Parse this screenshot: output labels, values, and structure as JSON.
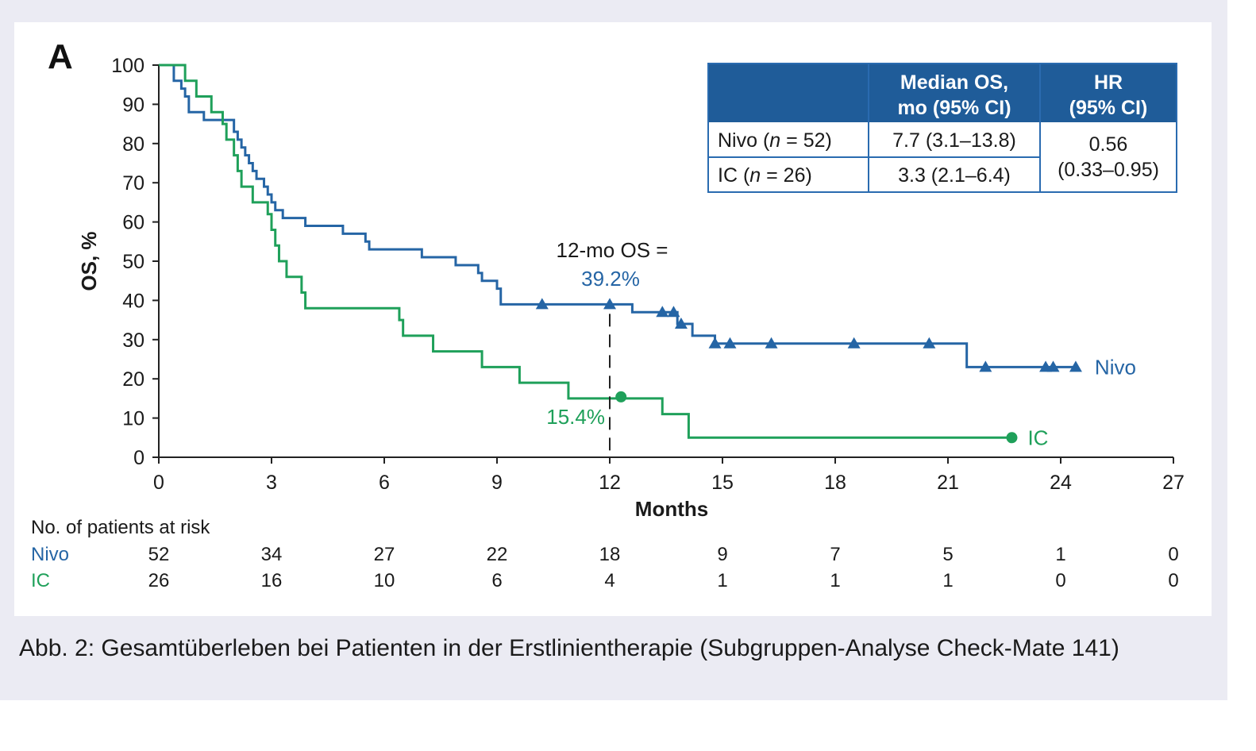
{
  "panel_label": "A",
  "chart_data": {
    "type": "line",
    "subtype": "kaplan-meier step",
    "xlabel": "Months",
    "ylabel": "OS, %",
    "xlim": [
      0,
      27
    ],
    "ylim": [
      0,
      100
    ],
    "xticks": [
      0,
      3,
      6,
      9,
      12,
      15,
      18,
      21,
      24,
      27
    ],
    "yticks": [
      0,
      10,
      20,
      30,
      40,
      50,
      60,
      70,
      80,
      90,
      100
    ],
    "grid": false,
    "series": [
      {
        "name": "Nivo",
        "color": "#2565a5",
        "censor_marker": "triangle",
        "steps": [
          [
            0,
            100
          ],
          [
            0.4,
            96
          ],
          [
            0.6,
            94
          ],
          [
            0.7,
            92
          ],
          [
            0.8,
            88
          ],
          [
            1.1,
            88
          ],
          [
            1.2,
            86
          ],
          [
            1.9,
            86
          ],
          [
            2.0,
            83
          ],
          [
            2.1,
            81
          ],
          [
            2.2,
            79
          ],
          [
            2.3,
            77
          ],
          [
            2.4,
            75
          ],
          [
            2.5,
            73
          ],
          [
            2.6,
            71
          ],
          [
            2.8,
            69
          ],
          [
            2.9,
            67
          ],
          [
            3.0,
            65
          ],
          [
            3.1,
            63
          ],
          [
            3.3,
            61
          ],
          [
            3.8,
            61
          ],
          [
            3.9,
            59
          ],
          [
            4.8,
            59
          ],
          [
            4.9,
            57
          ],
          [
            5.3,
            57
          ],
          [
            5.5,
            55
          ],
          [
            5.6,
            53
          ],
          [
            6.9,
            53
          ],
          [
            7.0,
            51
          ],
          [
            7.8,
            51
          ],
          [
            7.9,
            49
          ],
          [
            8.4,
            49
          ],
          [
            8.5,
            47
          ],
          [
            8.6,
            45
          ],
          [
            8.9,
            45
          ],
          [
            9.0,
            43
          ],
          [
            9.1,
            39
          ],
          [
            12.5,
            39
          ],
          [
            12.6,
            37
          ],
          [
            13.7,
            37
          ],
          [
            13.8,
            34
          ],
          [
            14.1,
            34
          ],
          [
            14.2,
            31
          ],
          [
            14.7,
            31
          ],
          [
            14.8,
            29
          ],
          [
            21.4,
            29
          ],
          [
            21.5,
            23
          ],
          [
            24.4,
            23
          ]
        ],
        "censors": [
          [
            10.2,
            39
          ],
          [
            12.0,
            39
          ],
          [
            13.4,
            37
          ],
          [
            13.7,
            37
          ],
          [
            13.9,
            34
          ],
          [
            14.8,
            29
          ],
          [
            15.2,
            29
          ],
          [
            16.3,
            29
          ],
          [
            18.5,
            29
          ],
          [
            20.5,
            29
          ],
          [
            22.0,
            23
          ],
          [
            23.6,
            23
          ],
          [
            23.8,
            23
          ],
          [
            24.4,
            23
          ]
        ],
        "end_label": "Nivo"
      },
      {
        "name": "IC",
        "color": "#1fa05a",
        "censor_marker": "circle",
        "steps": [
          [
            0,
            100
          ],
          [
            0.6,
            100
          ],
          [
            0.7,
            96
          ],
          [
            1.0,
            92
          ],
          [
            1.4,
            88
          ],
          [
            1.7,
            85
          ],
          [
            1.8,
            81
          ],
          [
            2.0,
            77
          ],
          [
            2.1,
            73
          ],
          [
            2.2,
            69
          ],
          [
            2.5,
            65
          ],
          [
            2.9,
            62
          ],
          [
            3.0,
            58
          ],
          [
            3.1,
            54
          ],
          [
            3.2,
            50
          ],
          [
            3.4,
            46
          ],
          [
            3.8,
            42
          ],
          [
            3.9,
            38
          ],
          [
            6.2,
            38
          ],
          [
            6.4,
            35
          ],
          [
            6.5,
            31
          ],
          [
            7.2,
            31
          ],
          [
            7.3,
            27
          ],
          [
            8.5,
            27
          ],
          [
            8.6,
            23
          ],
          [
            9.5,
            23
          ],
          [
            9.6,
            19
          ],
          [
            10.8,
            19
          ],
          [
            10.9,
            15
          ],
          [
            13.3,
            15
          ],
          [
            13.4,
            11
          ],
          [
            14.0,
            11
          ],
          [
            14.1,
            5
          ],
          [
            22.7,
            5
          ]
        ],
        "censors": [
          [
            12.3,
            15.4
          ],
          [
            22.7,
            5
          ]
        ],
        "end_label": "IC"
      }
    ],
    "annotations": {
      "line1": "12-mo OS =",
      "nivo_value": "39.2%",
      "ic_value": "15.4%",
      "x_at": 12
    },
    "legend_table": {
      "headers": [
        "",
        "Median OS,",
        "mo (95% CI)",
        "HR",
        "(95% CI)"
      ],
      "rows": [
        {
          "label_pre": "Nivo (",
          "label_n": "n",
          "label_post": " = 52)",
          "median": "7.7 (3.1–13.8)"
        },
        {
          "label_pre": "IC (",
          "label_n": "n",
          "label_post": " = 26)",
          "median": "3.3 (2.1–6.4)"
        }
      ],
      "hr_line1": "0.56",
      "hr_line2": "(0.33–0.95)",
      "placement": "top-right"
    },
    "risk_table": {
      "title": "No. of patients at risk",
      "rows": [
        {
          "name": "Nivo",
          "values": [
            "52",
            "34",
            "27",
            "22",
            "18",
            "9",
            "7",
            "5",
            "1",
            "0"
          ]
        },
        {
          "name": "IC",
          "values": [
            "26",
            "16",
            "10",
            "6",
            "4",
            "1",
            "1",
            "1",
            "0",
            "0"
          ]
        }
      ]
    }
  },
  "caption": "Abb. 2: Gesamtüberleben bei Patienten in der Erstlinientherapie (Subgruppen-Analyse Check-Mate 141)"
}
